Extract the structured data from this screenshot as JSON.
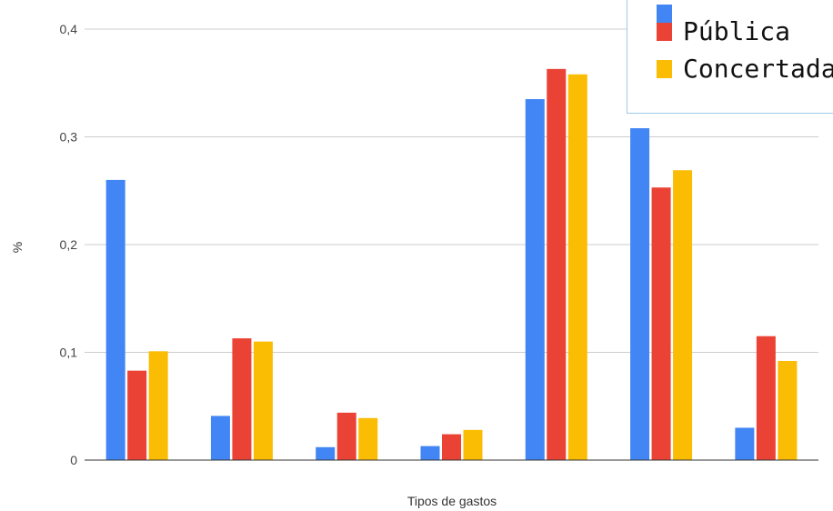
{
  "chart_data": {
    "type": "bar",
    "title": "",
    "xlabel": "Tipos de gastos",
    "ylabel": "%",
    "ylim": [
      0,
      0.4
    ],
    "yticks": [
      "0",
      "0,1",
      "0,2",
      "0,3",
      "0,4"
    ],
    "categories": [
      "",
      "",
      "",
      "",
      "",
      "",
      ""
    ],
    "grid": true,
    "legend_position": "top-right",
    "series": [
      {
        "color": "#4285f4",
        "values": [
          0.26,
          0.041,
          0.012,
          0.013,
          0.335,
          0.308,
          0.03
        ]
      },
      {
        "name": "Pública",
        "color": "#ea4335",
        "values": [
          0.083,
          0.113,
          0.044,
          0.024,
          0.363,
          0.253,
          0.115
        ]
      },
      {
        "name": "Concertada",
        "color": "#fbbc04",
        "values": [
          0.101,
          0.11,
          0.039,
          0.028,
          0.358,
          0.269,
          0.092
        ]
      }
    ]
  }
}
